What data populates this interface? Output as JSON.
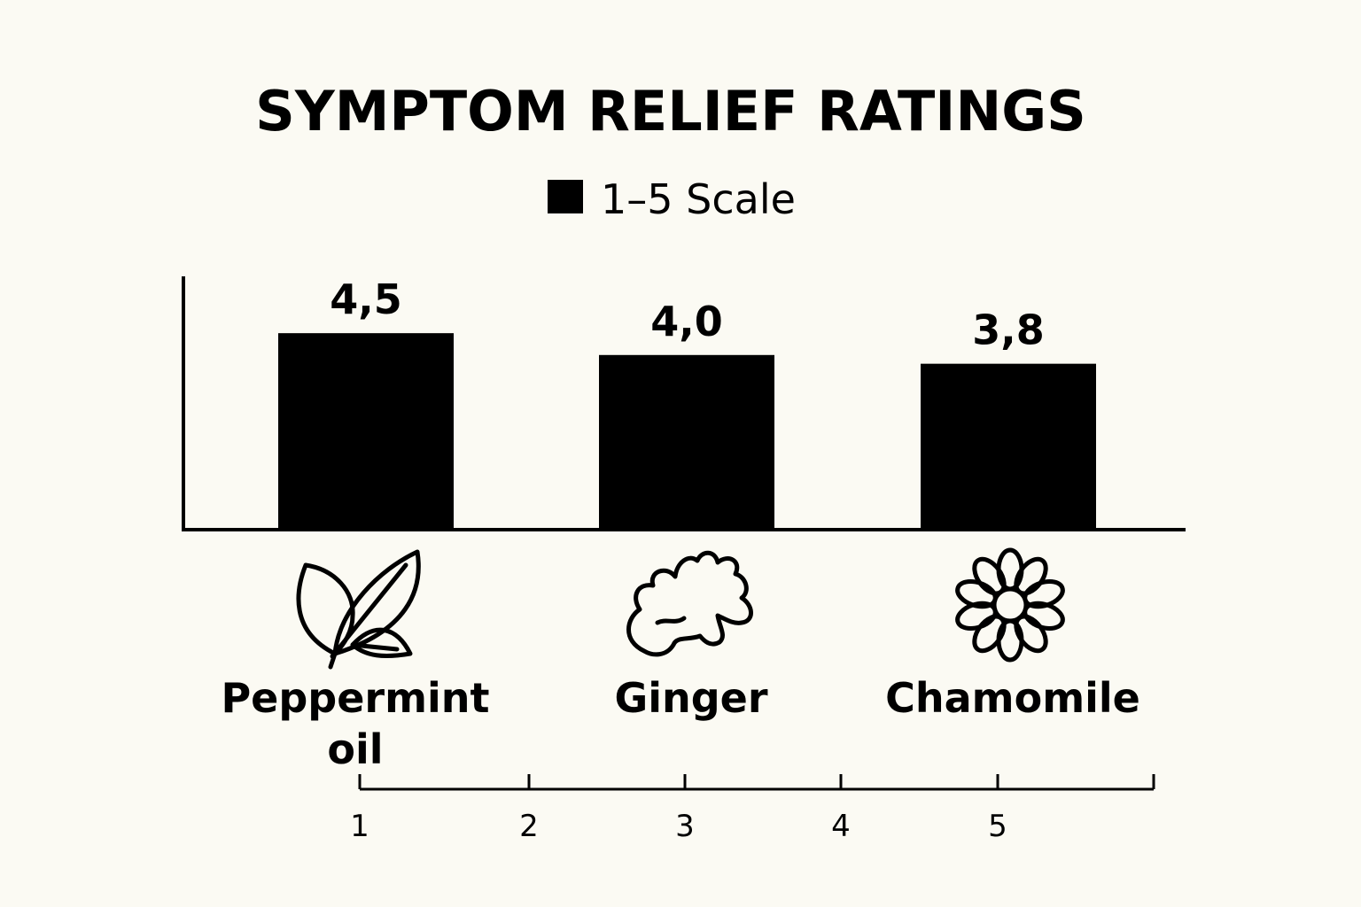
{
  "chart_data": {
    "type": "bar",
    "title": "SYMPTOM RELIEF RATINGS",
    "legend": {
      "label": "1–5 Scale",
      "color": "#000000",
      "position": "top-center"
    },
    "categories": [
      "Peppermint oil",
      "Ginger",
      "Chamomile"
    ],
    "category_label_lines": [
      [
        "Peppermint",
        "oil"
      ],
      [
        "Ginger"
      ],
      [
        "Chamomile"
      ]
    ],
    "category_icons": [
      "leaf-icon",
      "ginger-root-icon",
      "chamomile-flower-icon"
    ],
    "series": [
      {
        "name": "1–5 Scale",
        "values": [
          4.5,
          4.0,
          3.8
        ],
        "color": "#000000"
      }
    ],
    "data_labels": [
      "4,5",
      "4,0",
      "3,8"
    ],
    "scale_ticks": [
      "1",
      "2",
      "3",
      "4",
      "5"
    ],
    "ylim": [
      0,
      5
    ],
    "grid": false,
    "background": "#fbfaf3"
  }
}
